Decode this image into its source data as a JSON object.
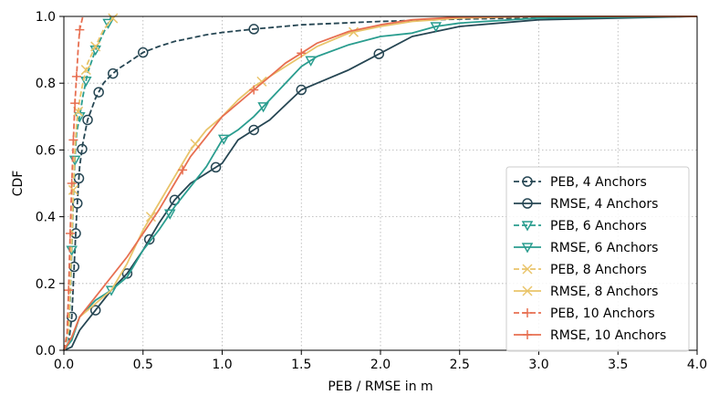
{
  "chart_data": {
    "type": "line",
    "title": "",
    "xlabel": "PEB / RMSE in m",
    "ylabel": "CDF",
    "xlim": [
      0.0,
      4.0
    ],
    "ylim": [
      0.0,
      1.0
    ],
    "grid": true,
    "legend_position": "bottom-right",
    "x_ticks": [
      0.0,
      0.5,
      1.0,
      1.5,
      2.0,
      2.5,
      3.0,
      3.5,
      4.0
    ],
    "x_tick_labels": [
      "0.0",
      "0.5",
      "1.0",
      "1.5",
      "2.0",
      "2.5",
      "3.0",
      "3.5",
      "4.0"
    ],
    "y_ticks": [
      0.0,
      0.2,
      0.4,
      0.6,
      0.8,
      1.0
    ],
    "y_tick_labels": [
      "0.0",
      "0.2",
      "0.4",
      "0.6",
      "0.8",
      "1.0"
    ],
    "series": [
      {
        "name": "PEB, 4 Anchors",
        "color": "#264653",
        "dash": "dashed",
        "marker": "circle",
        "x": [
          0.0,
          0.03,
          0.05,
          0.06,
          0.07,
          0.08,
          0.09,
          0.1,
          0.12,
          0.15,
          0.2,
          0.25,
          0.3,
          0.35,
          0.4,
          0.5,
          0.6,
          0.7,
          0.8,
          0.9,
          1.0,
          1.2,
          1.5,
          2.0,
          2.5,
          3.0,
          4.0
        ],
        "y": [
          0.0,
          0.02,
          0.1,
          0.2,
          0.3,
          0.4,
          0.48,
          0.55,
          0.62,
          0.69,
          0.755,
          0.8,
          0.825,
          0.845,
          0.86,
          0.892,
          0.91,
          0.925,
          0.935,
          0.945,
          0.952,
          0.962,
          0.975,
          0.985,
          0.992,
          0.996,
          1.0
        ],
        "marker_x": [
          0.05,
          0.065,
          0.075,
          0.085,
          0.095,
          0.115,
          0.15,
          0.22,
          0.31,
          0.5,
          1.2
        ]
      },
      {
        "name": "RMSE, 4 Anchors",
        "color": "#264653",
        "dash": "solid",
        "marker": "circle",
        "x": [
          0.0,
          0.05,
          0.1,
          0.2,
          0.3,
          0.4,
          0.5,
          0.55,
          0.6,
          0.7,
          0.8,
          0.9,
          1.0,
          1.1,
          1.2,
          1.3,
          1.4,
          1.5,
          1.6,
          1.8,
          2.0,
          2.2,
          2.5,
          3.0,
          3.5,
          4.0
        ],
        "y": [
          0.0,
          0.01,
          0.06,
          0.12,
          0.18,
          0.23,
          0.3,
          0.34,
          0.38,
          0.45,
          0.5,
          0.53,
          0.56,
          0.63,
          0.66,
          0.69,
          0.735,
          0.78,
          0.8,
          0.84,
          0.89,
          0.94,
          0.97,
          0.99,
          0.995,
          1.0
        ],
        "marker_x": [
          0.2,
          0.4,
          0.54,
          0.7,
          0.96,
          1.2,
          1.5,
          1.99
        ]
      },
      {
        "name": "PEB, 6 Anchors",
        "color": "#2a9d8f",
        "dash": "dashed",
        "marker": "triangle",
        "x": [
          0.0,
          0.03,
          0.04,
          0.05,
          0.06,
          0.07,
          0.08,
          0.1,
          0.12,
          0.15,
          0.2,
          0.25,
          0.3
        ],
        "y": [
          0.0,
          0.05,
          0.15,
          0.3,
          0.45,
          0.57,
          0.65,
          0.7,
          0.76,
          0.83,
          0.9,
          0.95,
          1.0
        ],
        "marker_x": [
          0.05,
          0.07,
          0.1,
          0.14,
          0.2,
          0.28
        ]
      },
      {
        "name": "RMSE, 6 Anchors",
        "color": "#2a9d8f",
        "dash": "solid",
        "marker": "triangle",
        "x": [
          0.0,
          0.05,
          0.1,
          0.2,
          0.3,
          0.4,
          0.5,
          0.6,
          0.7,
          0.8,
          0.9,
          1.0,
          1.1,
          1.2,
          1.3,
          1.4,
          1.5,
          1.6,
          1.8,
          2.0,
          2.2,
          2.35,
          2.5,
          3.0,
          4.0
        ],
        "y": [
          0.0,
          0.03,
          0.1,
          0.15,
          0.18,
          0.22,
          0.3,
          0.36,
          0.43,
          0.49,
          0.55,
          0.63,
          0.66,
          0.7,
          0.75,
          0.8,
          0.85,
          0.88,
          0.915,
          0.94,
          0.95,
          0.97,
          0.98,
          0.995,
          1.0
        ],
        "marker_x": [
          0.3,
          0.67,
          1.01,
          1.26,
          1.56,
          2.35
        ]
      },
      {
        "name": "PEB, 8 Anchors",
        "color": "#e9c46a",
        "dash": "dashed",
        "marker": "x",
        "x": [
          0.0,
          0.03,
          0.04,
          0.05,
          0.06,
          0.07,
          0.08,
          0.1,
          0.12,
          0.15,
          0.2,
          0.25,
          0.32
        ],
        "y": [
          0.0,
          0.06,
          0.18,
          0.33,
          0.48,
          0.6,
          0.68,
          0.75,
          0.8,
          0.86,
          0.91,
          0.96,
          1.0
        ],
        "marker_x": [
          0.06,
          0.09,
          0.14,
          0.2,
          0.31
        ]
      },
      {
        "name": "RMSE, 8 Anchors",
        "color": "#e9c46a",
        "dash": "solid",
        "marker": "x",
        "x": [
          0.0,
          0.05,
          0.1,
          0.2,
          0.3,
          0.4,
          0.5,
          0.6,
          0.7,
          0.8,
          0.9,
          1.0,
          1.1,
          1.2,
          1.3,
          1.4,
          1.5,
          1.6,
          1.8,
          2.0,
          2.2,
          2.5,
          3.0,
          4.0
        ],
        "y": [
          0.0,
          0.04,
          0.1,
          0.14,
          0.18,
          0.26,
          0.36,
          0.44,
          0.52,
          0.6,
          0.66,
          0.7,
          0.75,
          0.79,
          0.82,
          0.85,
          0.88,
          0.91,
          0.95,
          0.97,
          0.985,
          0.995,
          1.0,
          1.0
        ],
        "marker_x": [
          0.55,
          0.83,
          1.25,
          1.83
        ]
      },
      {
        "name": "PEB, 10 Anchors",
        "color": "#e76f51",
        "dash": "dashed",
        "marker": "plus",
        "x": [
          0.0,
          0.02,
          0.03,
          0.04,
          0.05,
          0.06,
          0.07,
          0.08,
          0.09,
          0.1,
          0.12
        ],
        "y": [
          0.0,
          0.05,
          0.18,
          0.35,
          0.5,
          0.63,
          0.74,
          0.82,
          0.9,
          0.96,
          1.0
        ],
        "marker_x": [
          0.03,
          0.04,
          0.05,
          0.06,
          0.07,
          0.08,
          0.1
        ]
      },
      {
        "name": "RMSE, 10 Anchors",
        "color": "#e76f51",
        "dash": "solid",
        "marker": "plus",
        "x": [
          0.0,
          0.05,
          0.1,
          0.2,
          0.3,
          0.4,
          0.5,
          0.6,
          0.7,
          0.8,
          0.9,
          1.0,
          1.1,
          1.2,
          1.3,
          1.4,
          1.5,
          1.6,
          1.8,
          2.0,
          2.2,
          2.5,
          3.0,
          4.0
        ],
        "y": [
          0.0,
          0.04,
          0.1,
          0.16,
          0.22,
          0.28,
          0.35,
          0.42,
          0.5,
          0.58,
          0.64,
          0.7,
          0.74,
          0.78,
          0.82,
          0.86,
          0.89,
          0.92,
          0.955,
          0.975,
          0.99,
          0.998,
          1.0,
          1.0
        ],
        "marker_x": [
          0.75,
          1.2,
          1.5
        ]
      }
    ]
  }
}
